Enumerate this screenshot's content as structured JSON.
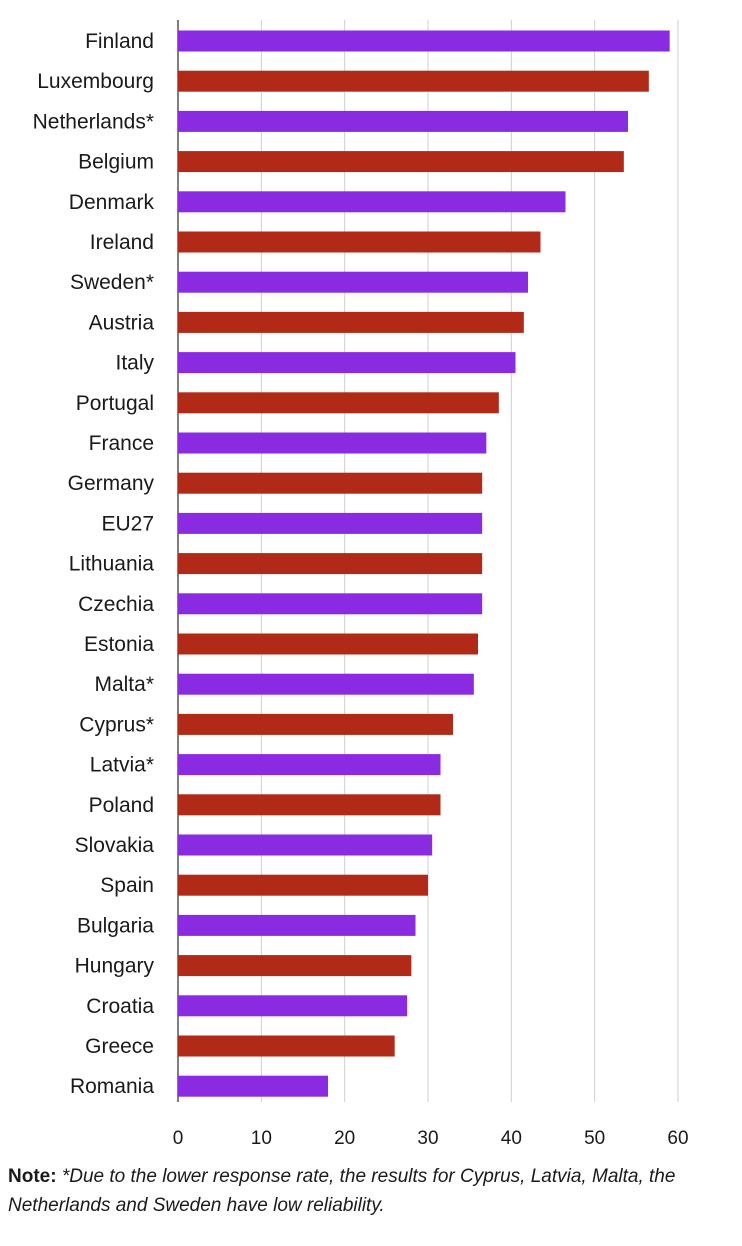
{
  "chart_data": {
    "type": "bar",
    "orientation": "horizontal",
    "categories": [
      "Finland",
      "Luxembourg",
      "Netherlands*",
      "Belgium",
      "Denmark",
      "Ireland",
      "Sweden*",
      "Austria",
      "Italy",
      "Portugal",
      "France",
      "Germany",
      "EU27",
      "Lithuania",
      "Czechia",
      "Estonia",
      "Malta*",
      "Cyprus*",
      "Latvia*",
      "Poland",
      "Slovakia",
      "Spain",
      "Bulgaria",
      "Hungary",
      "Croatia",
      "Greece",
      "Romania"
    ],
    "values": [
      59,
      56.5,
      54,
      53.5,
      46.5,
      43.5,
      42,
      41.5,
      40.5,
      38.5,
      37,
      36.5,
      36.5,
      36.5,
      36.5,
      36,
      35.5,
      33,
      31.5,
      31.5,
      30.5,
      30,
      28.5,
      28,
      27.5,
      26,
      18
    ],
    "xlim": [
      0,
      60
    ],
    "x_ticks": [
      "0",
      "10",
      "20",
      "30",
      "40",
      "50",
      "60"
    ],
    "grid": "vertical",
    "colors": {
      "alternating": [
        "#8a2be2",
        "#b02a17"
      ],
      "grid": "#cfcfcf",
      "axis": "#555555"
    }
  },
  "note": {
    "label": "Note:",
    "text": "*Due to the lower response rate, the results for Cyprus, Latvia, Malta, the Netherlands and Sweden have low reliability."
  }
}
